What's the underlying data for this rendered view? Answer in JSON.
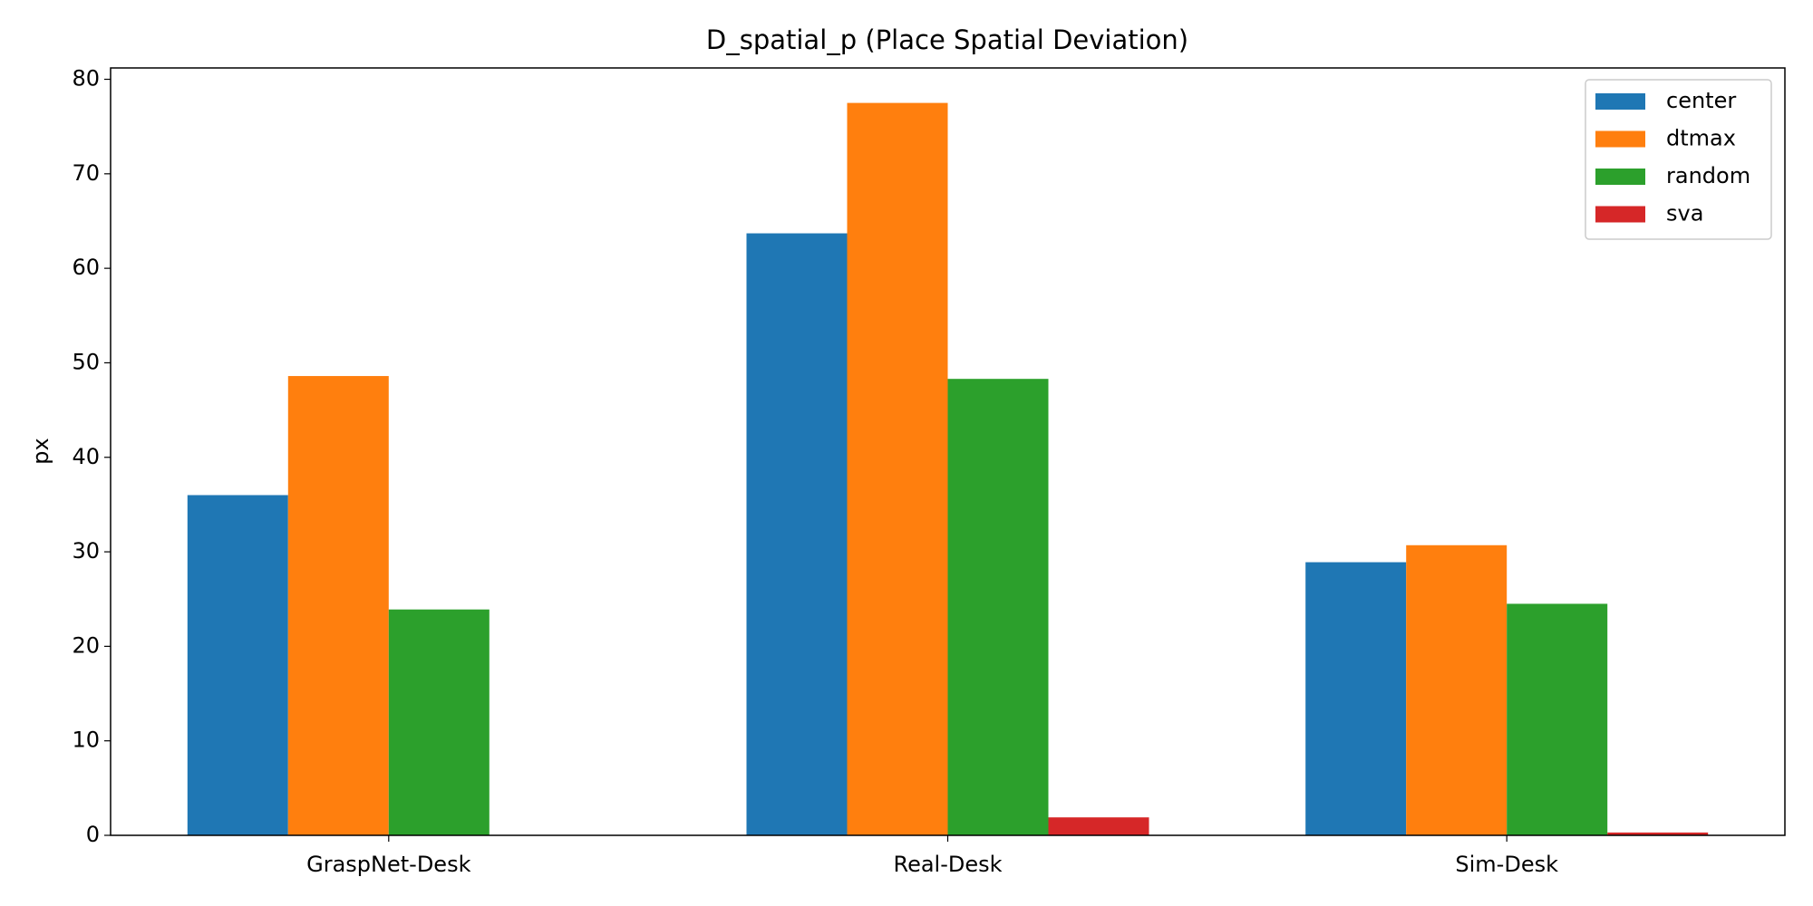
{
  "chart_data": {
    "type": "bar",
    "title": "D_spatial_p (Place Spatial Deviation)",
    "y_label": "px",
    "categories": [
      "GraspNet-Desk",
      "Real-Desk",
      "Sim-Desk"
    ],
    "series": [
      {
        "name": "center",
        "color": "#1f77b4",
        "values": [
          36.0,
          63.7,
          28.9
        ]
      },
      {
        "name": "dtmax",
        "color": "#ff7f0e",
        "values": [
          48.6,
          77.5,
          30.7
        ]
      },
      {
        "name": "random",
        "color": "#2ca02c",
        "values": [
          23.9,
          48.3,
          24.5
        ]
      },
      {
        "name": "sva",
        "color": "#d62728",
        "values": [
          0,
          1.9,
          0.3
        ]
      }
    ],
    "ylim": [
      0,
      81.2
    ],
    "yticks": [
      0,
      10,
      20,
      30,
      40,
      50,
      60,
      70,
      80
    ],
    "grid": false,
    "legend": "upper right"
  }
}
